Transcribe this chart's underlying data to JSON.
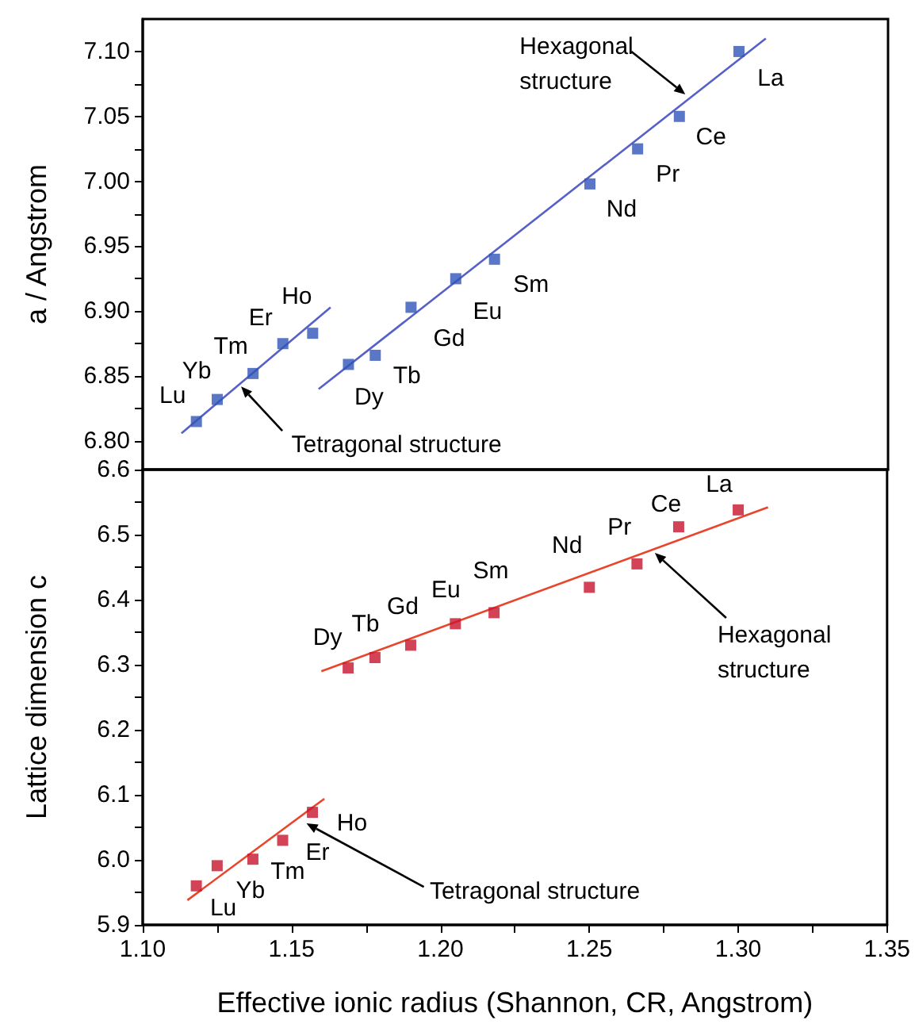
{
  "chart_data": [
    {
      "type": "scatter",
      "ylabel": "a / Angstrom",
      "xlim": [
        1.1,
        1.35
      ],
      "ylim": [
        6.778,
        7.125
      ],
      "tick_labels": "y",
      "yticks": [
        {
          "value": 6.8,
          "label": "6.80"
        },
        {
          "value": 6.825,
          "label": null
        },
        {
          "value": 6.85,
          "label": "6.85"
        },
        {
          "value": 6.875,
          "label": null
        },
        {
          "value": 6.9,
          "label": "6.90"
        },
        {
          "value": 6.925,
          "label": null
        },
        {
          "value": 6.95,
          "label": "6.95"
        },
        {
          "value": 6.975,
          "label": null
        },
        {
          "value": 7.0,
          "label": "7.00"
        },
        {
          "value": 7.025,
          "label": null
        },
        {
          "value": 7.05,
          "label": "7.05"
        },
        {
          "value": 7.075,
          "label": null
        },
        {
          "value": 7.1,
          "label": "7.10"
        }
      ],
      "series": [
        {
          "marker": "square",
          "color": "#2f55b8",
          "x": [
            1.118,
            1.125,
            1.137,
            1.147,
            1.157,
            1.169,
            1.178,
            1.19,
            1.205,
            1.218,
            1.25,
            1.266,
            1.28,
            1.3
          ],
          "values": [
            6.815,
            6.832,
            6.852,
            6.875,
            6.883,
            6.859,
            6.866,
            6.903,
            6.925,
            6.94,
            6.998,
            7.025,
            7.05,
            7.1
          ]
        },
        {
          "type": "line",
          "marker": "none",
          "color": "#5560c8",
          "x": [
            1.113,
            1.163
          ],
          "values": [
            6.806,
            6.903
          ]
        },
        {
          "type": "line",
          "marker": "none",
          "color": "#5560c8",
          "x": [
            1.159,
            1.309
          ],
          "values": [
            6.84,
            7.11
          ]
        }
      ],
      "annotations": [
        {
          "text": "Lu",
          "x": 1.118,
          "y": 6.815
        },
        {
          "text": "Yb",
          "x": 1.125,
          "y": 6.832
        },
        {
          "text": "Tm",
          "x": 1.137,
          "y": 6.852
        },
        {
          "text": "Er",
          "x": 1.147,
          "y": 6.875
        },
        {
          "text": "Ho",
          "x": 1.157,
          "y": 6.883
        },
        {
          "text": "Dy",
          "x": 1.169,
          "y": 6.859
        },
        {
          "text": "Tb",
          "x": 1.178,
          "y": 6.866
        },
        {
          "text": "Gd",
          "x": 1.19,
          "y": 6.903
        },
        {
          "text": "Eu",
          "x": 1.205,
          "y": 6.925
        },
        {
          "text": "Sm",
          "x": 1.218,
          "y": 6.94
        },
        {
          "text": "Nd",
          "x": 1.25,
          "y": 6.998
        },
        {
          "text": "Pr",
          "x": 1.266,
          "y": 7.025
        },
        {
          "text": "Ce",
          "x": 1.28,
          "y": 7.05
        },
        {
          "text": "La",
          "x": 1.3,
          "y": 7.1
        },
        {
          "text": "Hexagonal structure",
          "x": 1.282,
          "y": 7.067
        },
        {
          "text": "Tetragonal structure",
          "x": 1.133,
          "y": 6.842
        }
      ]
    },
    {
      "type": "scatter",
      "xlabel": "Effective ionic radius (Shannon, CR, Angstrom)",
      "ylabel": "Lattice dimension c",
      "xlim": [
        1.1,
        1.35
      ],
      "ylim": [
        5.9,
        6.6
      ],
      "xticks": [
        {
          "value": 1.1,
          "label": "1.10"
        },
        {
          "value": 1.125,
          "label": null
        },
        {
          "value": 1.15,
          "label": "1.15"
        },
        {
          "value": 1.175,
          "label": null
        },
        {
          "value": 1.2,
          "label": "1.20"
        },
        {
          "value": 1.225,
          "label": null
        },
        {
          "value": 1.25,
          "label": "1.25"
        },
        {
          "value": 1.275,
          "label": null
        },
        {
          "value": 1.3,
          "label": "1.30"
        },
        {
          "value": 1.325,
          "label": null
        },
        {
          "value": 1.35,
          "label": "1.35"
        }
      ],
      "yticks": [
        {
          "value": 5.9,
          "label": "5.9"
        },
        {
          "value": 5.95,
          "label": null
        },
        {
          "value": 6.0,
          "label": "6.0"
        },
        {
          "value": 6.05,
          "label": null
        },
        {
          "value": 6.1,
          "label": "6.1"
        },
        {
          "value": 6.15,
          "label": null
        },
        {
          "value": 6.2,
          "label": "6.2"
        },
        {
          "value": 6.25,
          "label": null
        },
        {
          "value": 6.3,
          "label": "6.3"
        },
        {
          "value": 6.35,
          "label": null
        },
        {
          "value": 6.4,
          "label": "6.4"
        },
        {
          "value": 6.45,
          "label": null
        },
        {
          "value": 6.5,
          "label": "6.5"
        },
        {
          "value": 6.55,
          "label": null
        },
        {
          "value": 6.6,
          "label": "6.6"
        }
      ],
      "series": [
        {
          "marker": "square",
          "color": "#c8142e",
          "x": [
            1.118,
            1.125,
            1.137,
            1.147,
            1.157,
            1.169,
            1.178,
            1.19,
            1.205,
            1.218,
            1.25,
            1.266,
            1.28,
            1.3
          ],
          "values": [
            5.96,
            5.991,
            6.001,
            6.03,
            6.073,
            6.295,
            6.311,
            6.33,
            6.363,
            6.38,
            6.419,
            6.455,
            6.512,
            6.538
          ]
        },
        {
          "type": "line",
          "marker": "none",
          "color": "#e8452c",
          "x": [
            1.115,
            1.161
          ],
          "values": [
            5.938,
            6.094
          ]
        },
        {
          "type": "line",
          "marker": "none",
          "color": "#e8452c",
          "x": [
            1.16,
            1.31
          ],
          "values": [
            6.29,
            6.542
          ]
        }
      ],
      "annotations": [
        {
          "text": "Lu",
          "x": 1.118,
          "y": 5.96
        },
        {
          "text": "Yb",
          "x": 1.125,
          "y": 5.991
        },
        {
          "text": "Tm",
          "x": 1.137,
          "y": 6.001
        },
        {
          "text": "Er",
          "x": 1.147,
          "y": 6.03
        },
        {
          "text": "Ho",
          "x": 1.157,
          "y": 6.073
        },
        {
          "text": "Dy",
          "x": 1.169,
          "y": 6.295
        },
        {
          "text": "Tb",
          "x": 1.178,
          "y": 6.311
        },
        {
          "text": "Gd",
          "x": 1.19,
          "y": 6.33
        },
        {
          "text": "Eu",
          "x": 1.205,
          "y": 6.363
        },
        {
          "text": "Sm",
          "x": 1.218,
          "y": 6.38
        },
        {
          "text": "Nd",
          "x": 1.25,
          "y": 6.419
        },
        {
          "text": "Pr",
          "x": 1.266,
          "y": 6.455
        },
        {
          "text": "Ce",
          "x": 1.28,
          "y": 6.512
        },
        {
          "text": "La",
          "x": 1.3,
          "y": 6.538
        },
        {
          "text": "Hexagonal structure",
          "x": 1.272,
          "y": 6.472
        },
        {
          "text": "Tetragonal structure",
          "x": 1.155,
          "y": 6.056
        }
      ]
    }
  ]
}
